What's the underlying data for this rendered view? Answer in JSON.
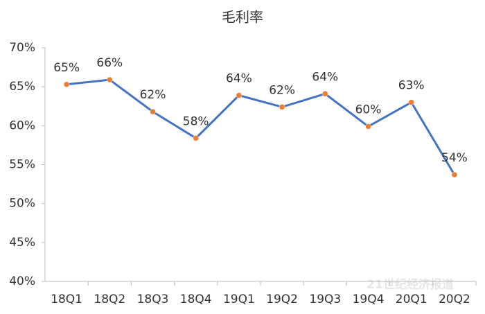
{
  "chart_data": {
    "type": "line",
    "title": "毛利率",
    "categories": [
      "18Q1",
      "18Q2",
      "18Q3",
      "18Q4",
      "19Q1",
      "19Q2",
      "19Q3",
      "19Q4",
      "20Q1",
      "20Q2"
    ],
    "series": [
      {
        "color": "#4472c4",
        "marker_color": "#ed7d31",
        "values": [
          65.3,
          65.9,
          61.8,
          58.4,
          63.9,
          62.4,
          64.1,
          59.9,
          63.0,
          53.7
        ],
        "value_labels": [
          "65%",
          "66%",
          "62%",
          "58%",
          "64%",
          "62%",
          "64%",
          "60%",
          "63%",
          "54%"
        ]
      }
    ],
    "ylim": [
      40,
      70
    ],
    "yticks": [
      {
        "value": 40,
        "label": "40%"
      },
      {
        "value": 45,
        "label": "45%"
      },
      {
        "value": 50,
        "label": "50%"
      },
      {
        "value": 55,
        "label": "55%"
      },
      {
        "value": 60,
        "label": "60%"
      },
      {
        "value": 65,
        "label": "65%"
      },
      {
        "value": 70,
        "label": "70%"
      }
    ],
    "grid": false,
    "watermark": "21世纪经济报道"
  }
}
